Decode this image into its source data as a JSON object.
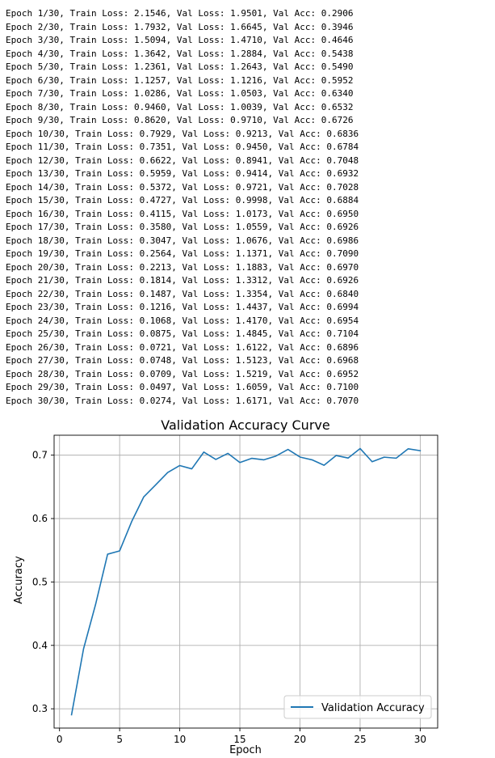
{
  "log_lines": [
    "Epoch 1/30, Train Loss: 2.1546, Val Loss: 1.9501, Val Acc: 0.2906",
    "Epoch 2/30, Train Loss: 1.7932, Val Loss: 1.6645, Val Acc: 0.3946",
    "Epoch 3/30, Train Loss: 1.5094, Val Loss: 1.4710, Val Acc: 0.4646",
    "Epoch 4/30, Train Loss: 1.3642, Val Loss: 1.2884, Val Acc: 0.5438",
    "Epoch 5/30, Train Loss: 1.2361, Val Loss: 1.2643, Val Acc: 0.5490",
    "Epoch 6/30, Train Loss: 1.1257, Val Loss: 1.1216, Val Acc: 0.5952",
    "Epoch 7/30, Train Loss: 1.0286, Val Loss: 1.0503, Val Acc: 0.6340",
    "Epoch 8/30, Train Loss: 0.9460, Val Loss: 1.0039, Val Acc: 0.6532",
    "Epoch 9/30, Train Loss: 0.8620, Val Loss: 0.9710, Val Acc: 0.6726",
    "Epoch 10/30, Train Loss: 0.7929, Val Loss: 0.9213, Val Acc: 0.6836",
    "Epoch 11/30, Train Loss: 0.7351, Val Loss: 0.9450, Val Acc: 0.6784",
    "Epoch 12/30, Train Loss: 0.6622, Val Loss: 0.8941, Val Acc: 0.7048",
    "Epoch 13/30, Train Loss: 0.5959, Val Loss: 0.9414, Val Acc: 0.6932",
    "Epoch 14/30, Train Loss: 0.5372, Val Loss: 0.9721, Val Acc: 0.7028",
    "Epoch 15/30, Train Loss: 0.4727, Val Loss: 0.9998, Val Acc: 0.6884",
    "Epoch 16/30, Train Loss: 0.4115, Val Loss: 1.0173, Val Acc: 0.6950",
    "Epoch 17/30, Train Loss: 0.3580, Val Loss: 1.0559, Val Acc: 0.6926",
    "Epoch 18/30, Train Loss: 0.3047, Val Loss: 1.0676, Val Acc: 0.6986",
    "Epoch 19/30, Train Loss: 0.2564, Val Loss: 1.1371, Val Acc: 0.7090",
    "Epoch 20/30, Train Loss: 0.2213, Val Loss: 1.1883, Val Acc: 0.6970",
    "Epoch 21/30, Train Loss: 0.1814, Val Loss: 1.3312, Val Acc: 0.6926",
    "Epoch 22/30, Train Loss: 0.1487, Val Loss: 1.3354, Val Acc: 0.6840",
    "Epoch 23/30, Train Loss: 0.1216, Val Loss: 1.4437, Val Acc: 0.6994",
    "Epoch 24/30, Train Loss: 0.1068, Val Loss: 1.4170, Val Acc: 0.6954",
    "Epoch 25/30, Train Loss: 0.0875, Val Loss: 1.4845, Val Acc: 0.7104",
    "Epoch 26/30, Train Loss: 0.0721, Val Loss: 1.6122, Val Acc: 0.6896",
    "Epoch 27/30, Train Loss: 0.0748, Val Loss: 1.5123, Val Acc: 0.6968",
    "Epoch 28/30, Train Loss: 0.0709, Val Loss: 1.5219, Val Acc: 0.6952",
    "Epoch 29/30, Train Loss: 0.0497, Val Loss: 1.6059, Val Acc: 0.7100",
    "Epoch 30/30, Train Loss: 0.0274, Val Loss: 1.6171, Val Acc: 0.7070"
  ],
  "chart_data": {
    "type": "line",
    "title": "Validation Accuracy Curve",
    "xlabel": "Epoch",
    "ylabel": "Accuracy",
    "xlim": [
      -0.45,
      31.45
    ],
    "ylim": [
      0.2696,
      0.7314
    ],
    "xticks": [
      0,
      5,
      10,
      15,
      20,
      25,
      30
    ],
    "yticks": [
      0.3,
      0.4,
      0.5,
      0.6,
      0.7
    ],
    "grid": true,
    "legend_position": "lower-right",
    "series": [
      {
        "name": "Validation Accuracy",
        "color": "#1f77b4",
        "x": [
          1,
          2,
          3,
          4,
          5,
          6,
          7,
          8,
          9,
          10,
          11,
          12,
          13,
          14,
          15,
          16,
          17,
          18,
          19,
          20,
          21,
          22,
          23,
          24,
          25,
          26,
          27,
          28,
          29,
          30
        ],
        "values": [
          0.2906,
          0.3946,
          0.4646,
          0.5438,
          0.549,
          0.5952,
          0.634,
          0.6532,
          0.6726,
          0.6836,
          0.6784,
          0.7048,
          0.6932,
          0.7028,
          0.6884,
          0.695,
          0.6926,
          0.6986,
          0.709,
          0.697,
          0.6926,
          0.684,
          0.6994,
          0.6954,
          0.7104,
          0.6896,
          0.6968,
          0.6952,
          0.71,
          0.707
        ]
      }
    ]
  }
}
